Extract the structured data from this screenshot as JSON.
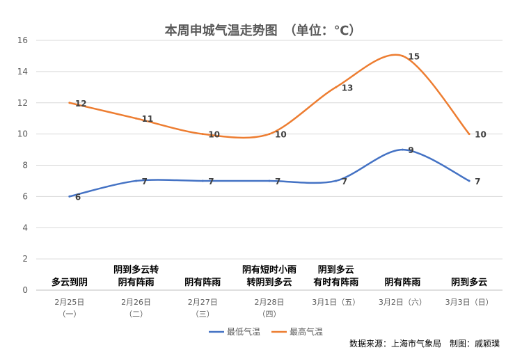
{
  "chart_data": {
    "type": "line",
    "title": "本周申城气温走势图　（单位：℃）",
    "ylim": [
      0,
      16
    ],
    "yticks": [
      "0",
      "2",
      "4",
      "6",
      "8",
      "10",
      "12",
      "14",
      "16"
    ],
    "grid": true,
    "legend_position": "bottom",
    "categories": [
      {
        "date": "2月25日",
        "weekday": "（一）",
        "weather": [
          "多云到阴"
        ]
      },
      {
        "date": "2月26日",
        "weekday": "（二）",
        "weather": [
          "阴到多云转",
          "阴有阵雨"
        ]
      },
      {
        "date": "2月27日",
        "weekday": "（三）",
        "weather": [
          "阴有阵雨"
        ]
      },
      {
        "date": "2月28日",
        "weekday": "（四）",
        "weather": [
          "阴有短时小雨",
          "转阴到多云"
        ]
      },
      {
        "date": "3月1日（五）",
        "weekday": "",
        "weather": [
          "阴到多云",
          "有时有阵雨"
        ]
      },
      {
        "date": "3月2日（六）",
        "weekday": "",
        "weather": [
          "阴有阵雨"
        ]
      },
      {
        "date": "3月3日（日）",
        "weekday": "",
        "weather": [
          "阴到多云"
        ]
      }
    ],
    "series": [
      {
        "name": "最低气温",
        "color": "#4472C4",
        "values": [
          6,
          7,
          7,
          7,
          7,
          9,
          7
        ]
      },
      {
        "name": "最高气温",
        "color": "#ED7D31",
        "values": [
          12,
          11,
          10,
          10,
          13,
          15,
          10
        ]
      }
    ],
    "source": "数据来源：上海市气象局　制图：戚颖璞"
  }
}
